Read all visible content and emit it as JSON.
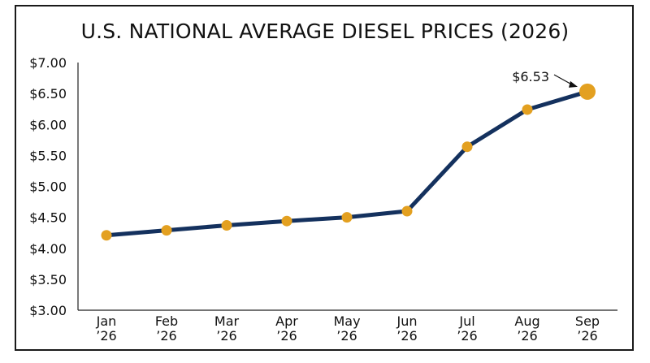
{
  "chart_data": {
    "type": "line",
    "title": "U.S. NATIONAL AVERAGE DIESEL PRICES (2026)",
    "xlabel": "",
    "ylabel": "",
    "categories": [
      [
        "Jan",
        "’26"
      ],
      [
        "Feb",
        "’26"
      ],
      [
        "Mar",
        "’26"
      ],
      [
        "Apr",
        "’26"
      ],
      [
        "May",
        "’26"
      ],
      [
        "Jun",
        "’26"
      ],
      [
        "Jul",
        "’26"
      ],
      [
        "Aug",
        "’26"
      ],
      [
        "Sep",
        "’26"
      ]
    ],
    "values": [
      4.21,
      4.29,
      4.37,
      4.44,
      4.5,
      4.6,
      5.64,
      6.24,
      6.53
    ],
    "ylim": [
      3.0,
      7.0
    ],
    "yticks": [
      3.0,
      3.5,
      4.0,
      4.5,
      5.0,
      5.5,
      6.0,
      6.5,
      7.0
    ],
    "ytick_labels": [
      "$3.00",
      "$3.50",
      "$4.00",
      "$4.50",
      "$5.00",
      "$5.50",
      "$6.00",
      "$6.50",
      "$7.00"
    ],
    "annotation": {
      "text": "$6.53",
      "index": 8
    },
    "grid": false,
    "line_color": "#14315e",
    "marker_color": "#e3a020"
  }
}
